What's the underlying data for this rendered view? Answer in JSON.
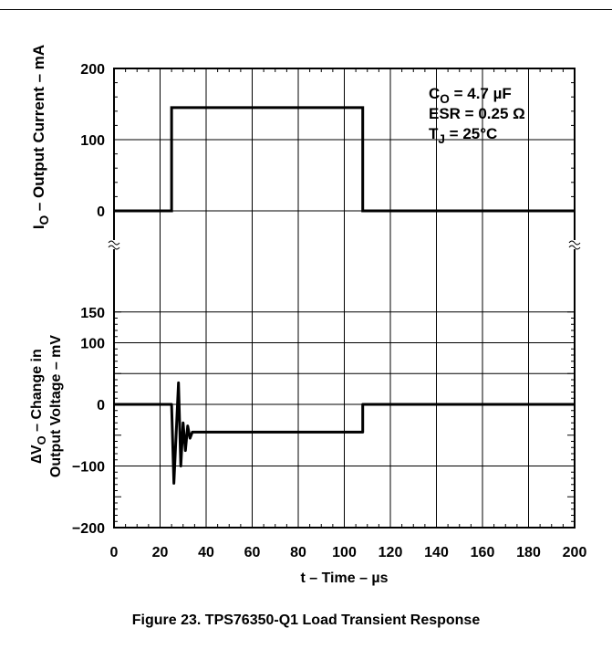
{
  "caption": "Figure 23. TPS76350-Q1 Load Transient Response",
  "chart_data": [
    {
      "panel": "current",
      "type": "line",
      "ylabel_main": "I",
      "ylabel_sub": "O",
      "ylabel_rest": " – Output Current – mA",
      "ylim": [
        0,
        200
      ],
      "yticks": [
        0,
        100,
        200
      ],
      "grid": true,
      "annotations": [
        {
          "main": "C",
          "sub": "O",
          "rest": " = 4.7 µF"
        },
        {
          "main": "ESR = 0.25 Ω",
          "sub": "",
          "rest": ""
        },
        {
          "main": "T",
          "sub": "J",
          "rest": " = 25°C"
        }
      ],
      "series": [
        {
          "x": [
            0,
            25,
            25,
            108,
            108,
            200
          ],
          "y": [
            0,
            0,
            145,
            145,
            0,
            0
          ]
        }
      ]
    },
    {
      "panel": "voltage",
      "type": "line",
      "ylabel_line1_main": "∆V",
      "ylabel_line1_sub": "O",
      "ylabel_line1_rest": " – Change in",
      "ylabel_line2": "Output Voltage – mV",
      "xlabel": "t – Time – µs",
      "xlim": [
        0,
        200
      ],
      "xticks": [
        0,
        20,
        40,
        60,
        80,
        100,
        120,
        140,
        160,
        180,
        200
      ],
      "ylim": [
        -200,
        150
      ],
      "yticks": [
        -200,
        -100,
        0,
        50,
        100,
        150
      ],
      "ytick_labels": [
        "−200",
        "−100",
        "0",
        "",
        "100",
        "150"
      ],
      "grid": true,
      "series": [
        {
          "x": [
            0,
            25,
            26,
            28,
            29,
            30,
            31,
            32,
            33,
            34,
            36,
            108,
            108,
            200
          ],
          "y": [
            0,
            0,
            -128,
            35,
            -100,
            -30,
            -75,
            -35,
            -55,
            -45,
            -45,
            -45,
            0,
            0
          ]
        }
      ]
    }
  ]
}
